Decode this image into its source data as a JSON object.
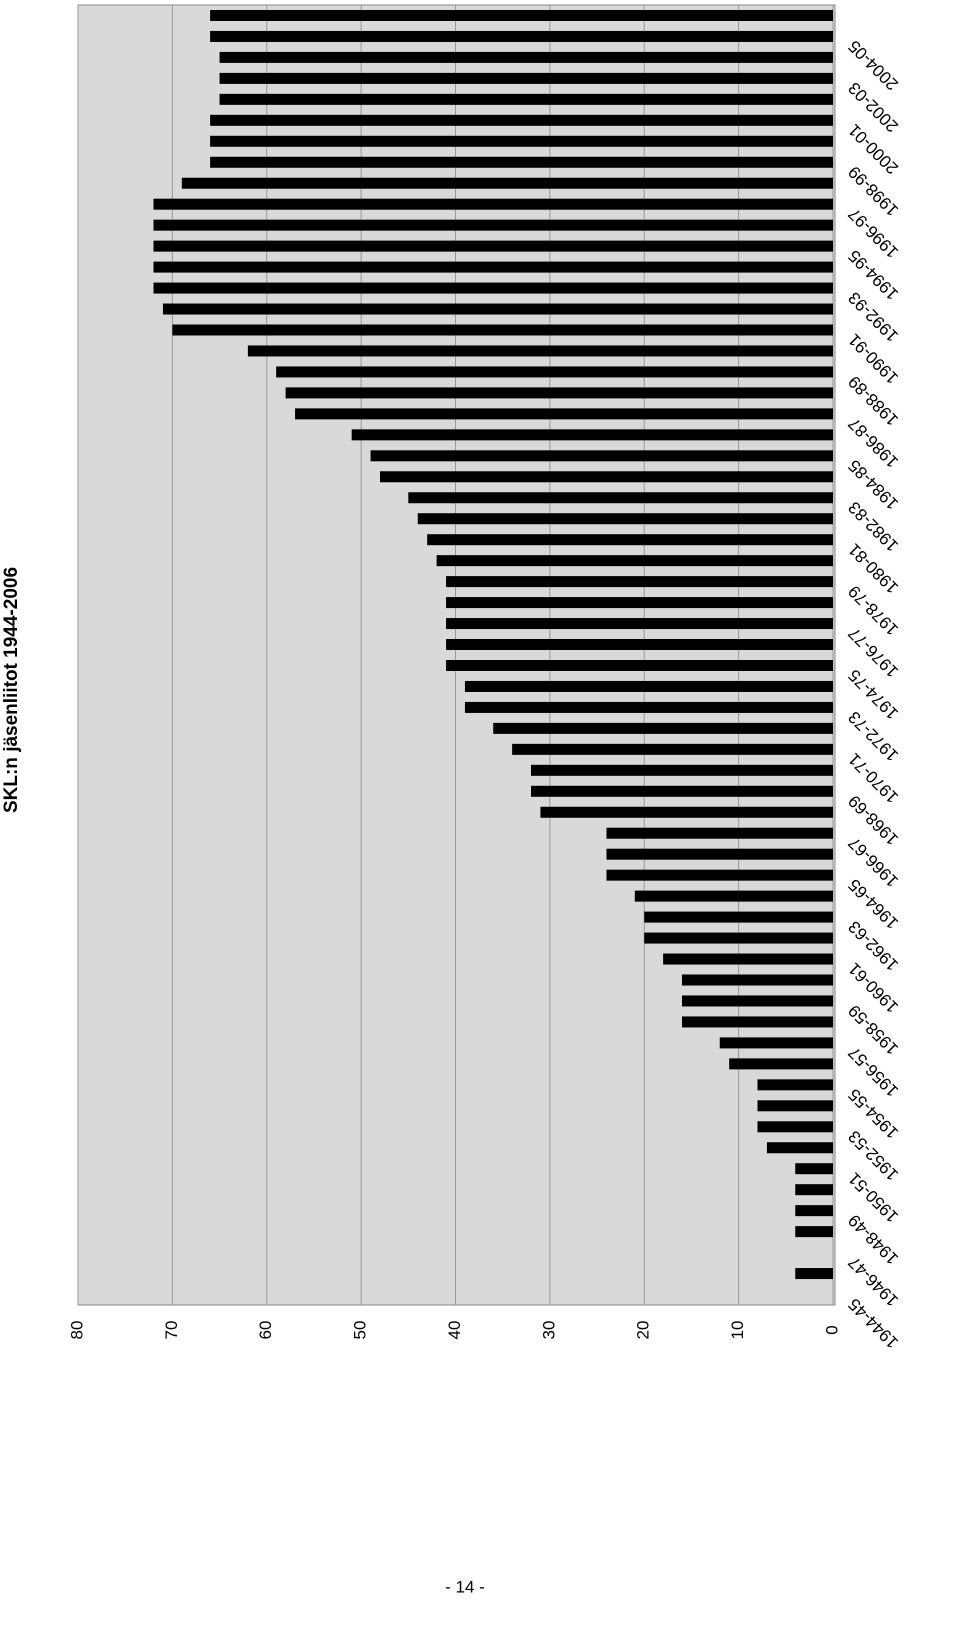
{
  "chart_data": {
    "type": "bar",
    "title": "SKL:n jäsenliitot 1944-2006",
    "categories": [
      "1944-45",
      null,
      "1946-47",
      null,
      "1948-49",
      null,
      "1950-51",
      null,
      "1952-53",
      null,
      "1954-55",
      null,
      "1956-57",
      null,
      "1958-59",
      null,
      "1960-61",
      null,
      "1962-63",
      null,
      "1964-65",
      null,
      "1966-67",
      null,
      "1968-69",
      null,
      "1970-71",
      null,
      "1972-73",
      null,
      "1974-75",
      null,
      "1976-77",
      null,
      "1978-79",
      null,
      "1980-81",
      null,
      "1982-83",
      null,
      "1984-85",
      null,
      "1986-87",
      null,
      "1988-89",
      null,
      "1990-91",
      null,
      "1992-93",
      null,
      "1994-95",
      null,
      "1996-97",
      null,
      "1998-99",
      null,
      "2000-01",
      null,
      "2002-03",
      null,
      "2004-05",
      null
    ],
    "values": [
      0,
      4,
      0,
      4,
      4,
      4,
      4,
      7,
      8,
      8,
      8,
      11,
      12,
      16,
      16,
      16,
      18,
      20,
      20,
      21,
      24,
      24,
      24,
      31,
      32,
      32,
      34,
      36,
      39,
      39,
      41,
      41,
      41,
      41,
      41,
      42,
      43,
      44,
      45,
      48,
      49,
      51,
      57,
      58,
      59,
      62,
      70,
      71,
      72,
      72,
      72,
      72,
      72,
      69,
      66,
      66,
      66,
      65,
      65,
      65,
      66,
      66
    ],
    "color": "#000000",
    "ylim": [
      0,
      80
    ],
    "yticks": [
      0,
      10,
      20,
      30,
      40,
      50,
      60,
      70,
      80
    ],
    "grid": true
  },
  "page_number": "- 14 -"
}
